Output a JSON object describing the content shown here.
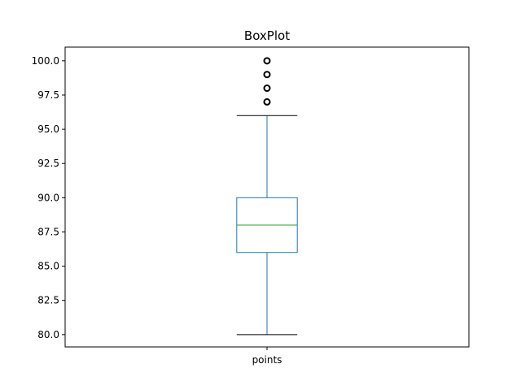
{
  "chart_data": {
    "type": "box",
    "title": "BoxPlot",
    "xlabel": "",
    "ylabel": "",
    "categories": [
      "points"
    ],
    "ylim": [
      79.1,
      101.0
    ],
    "yticks": [
      80.0,
      82.5,
      85.0,
      87.5,
      90.0,
      92.5,
      95.0,
      97.5,
      100.0
    ],
    "ytick_labels": [
      "80.0",
      "82.5",
      "85.0",
      "87.5",
      "90.0",
      "92.5",
      "95.0",
      "97.5",
      "100.0"
    ],
    "grid": false,
    "boxes": [
      {
        "category": "points",
        "whisker_low": 80,
        "q1": 86,
        "median": 88,
        "q3": 90,
        "whisker_high": 96,
        "outliers": [
          97,
          98,
          99,
          100
        ]
      }
    ],
    "colors": {
      "box": "#1f77b4",
      "median": "#2ca02c",
      "whisker_cap": "#000000",
      "outlier": "#000000",
      "frame": "#000000"
    }
  }
}
